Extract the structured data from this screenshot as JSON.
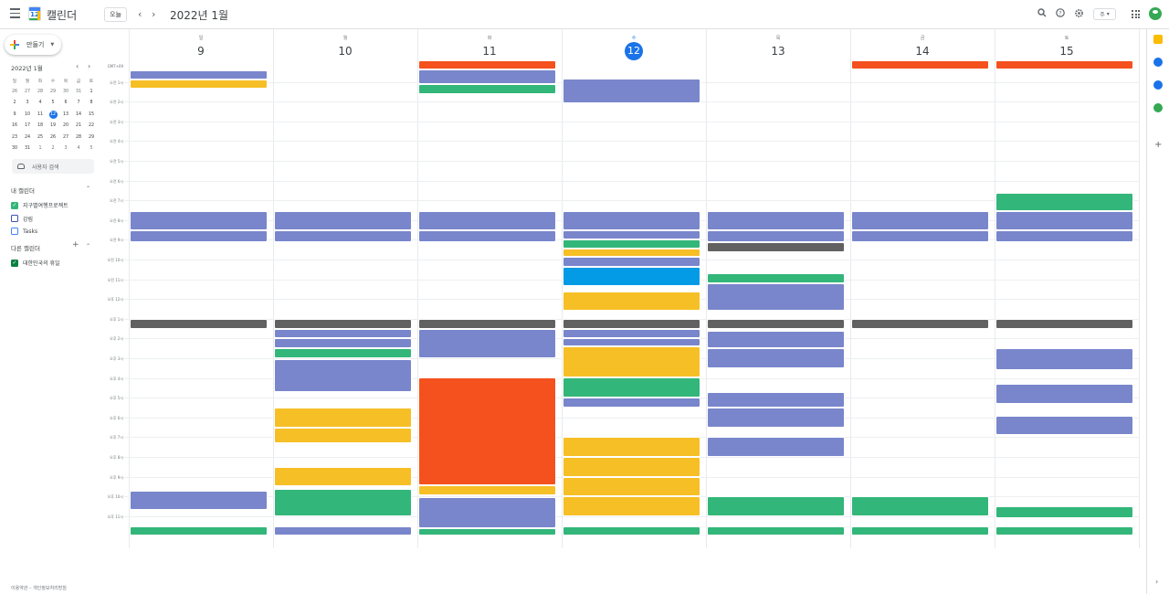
{
  "app": {
    "title": "캘린더",
    "logo_date": "12"
  },
  "toolbar": {
    "today_label": "오늘",
    "prev": "‹",
    "next": "›",
    "period_title": "2022년 1월",
    "view_label": "주",
    "search_icon": "search-icon",
    "help_icon": "help-icon",
    "settings_icon": "gear-icon"
  },
  "sidebar": {
    "create_label": "만들기",
    "mini_title": "2022년 1월",
    "mini_headers": [
      "일",
      "월",
      "화",
      "수",
      "목",
      "금",
      "토"
    ],
    "mini_days": [
      [
        "26",
        "27",
        "28",
        "29",
        "30",
        "31",
        "1"
      ],
      [
        "2",
        "3",
        "4",
        "5",
        "6",
        "7",
        "8"
      ],
      [
        "9",
        "10",
        "11",
        "12",
        "13",
        "14",
        "15"
      ],
      [
        "16",
        "17",
        "18",
        "19",
        "20",
        "21",
        "22"
      ],
      [
        "23",
        "24",
        "25",
        "26",
        "27",
        "28",
        "29"
      ],
      [
        "30",
        "31",
        "1",
        "2",
        "3",
        "4",
        "5"
      ]
    ],
    "people_search": "사용자 검색",
    "my_calendars_title": "내 캘린더",
    "my_calendars": [
      {
        "label": "지구별여행프로젝트",
        "color": "#33b679",
        "checked": true
      },
      {
        "label": "강림",
        "color": "#3f51b5",
        "checked": false
      },
      {
        "label": "Tasks",
        "color": "#4285f4",
        "checked": false
      }
    ],
    "other_calendars_title": "다른 캘린더",
    "other_calendars": [
      {
        "label": "대한민국의 휴일",
        "color": "#0b8043",
        "checked": true
      }
    ],
    "footer": "이용약관 – 개인정보처리방침"
  },
  "days": [
    {
      "dow": "일",
      "num": "9",
      "today": false
    },
    {
      "dow": "월",
      "num": "10",
      "today": false
    },
    {
      "dow": "화",
      "num": "11",
      "today": false
    },
    {
      "dow": "수",
      "num": "12",
      "today": true
    },
    {
      "dow": "목",
      "num": "13",
      "today": false
    },
    {
      "dow": "금",
      "num": "14",
      "today": false
    },
    {
      "dow": "토",
      "num": "15",
      "today": false
    }
  ],
  "time_labels": [
    "GMT+09",
    "오전 1시",
    "오전 2시",
    "오전 3시",
    "오전 4시",
    "오전 5시",
    "오전 6시",
    "오전 7시",
    "오전 8시",
    "오전 9시",
    "오전 10시",
    "오전 11시",
    "오후 12시",
    "오후 1시",
    "오후 2시",
    "오후 3시",
    "오후 4시",
    "오후 5시",
    "오후 6시",
    "오후 7시",
    "오후 8시",
    "오후 9시",
    "오후 10시",
    "오후 11시"
  ],
  "events": [
    {
      "day": 0,
      "start": 0.4,
      "end": 0.9,
      "color": "blue",
      "text": ""
    },
    {
      "day": 0,
      "start": 0.9,
      "end": 1.35,
      "color": "yellow",
      "text": ""
    },
    {
      "day": 2,
      "start": -0.2,
      "end": 0.35,
      "color": "red",
      "text": ""
    },
    {
      "day": 2,
      "start": 0.35,
      "end": 1.1,
      "color": "blue",
      "text": ""
    },
    {
      "day": 2,
      "start": 1.1,
      "end": 1.6,
      "color": "green",
      "text": ""
    },
    {
      "day": 3,
      "start": 0.85,
      "end": 2.1,
      "color": "blue",
      "text": ""
    },
    {
      "day": 5,
      "start": -0.2,
      "end": 0.35,
      "color": "red",
      "text": ""
    },
    {
      "day": 6,
      "start": -0.2,
      "end": 0.35,
      "color": "red",
      "text": ""
    },
    {
      "day": 6,
      "start": 6.6,
      "end": 7.55,
      "color": "green",
      "text": ""
    },
    {
      "day": 0,
      "start": 7.55,
      "end": 8.5,
      "color": "blue",
      "text": ""
    },
    {
      "day": 0,
      "start": 8.5,
      "end": 9.1,
      "color": "blue",
      "text": ""
    },
    {
      "day": 1,
      "start": 7.55,
      "end": 8.5,
      "color": "blue",
      "text": ""
    },
    {
      "day": 1,
      "start": 8.5,
      "end": 9.1,
      "color": "blue",
      "text": ""
    },
    {
      "day": 2,
      "start": 7.55,
      "end": 8.5,
      "color": "blue",
      "text": ""
    },
    {
      "day": 2,
      "start": 8.5,
      "end": 9.1,
      "color": "blue",
      "text": ""
    },
    {
      "day": 3,
      "start": 7.55,
      "end": 8.5,
      "color": "blue",
      "text": ""
    },
    {
      "day": 3,
      "start": 8.5,
      "end": 9.0,
      "color": "blue",
      "text": ""
    },
    {
      "day": 3,
      "start": 9.0,
      "end": 9.45,
      "color": "green",
      "text": ""
    },
    {
      "day": 3,
      "start": 9.45,
      "end": 9.85,
      "color": "yellow",
      "text": ""
    },
    {
      "day": 3,
      "start": 9.85,
      "end": 10.35,
      "color": "blue",
      "text": ""
    },
    {
      "day": 3,
      "start": 10.35,
      "end": 11.35,
      "color": "cyan",
      "text": ""
    },
    {
      "day": 3,
      "start": 11.6,
      "end": 12.6,
      "color": "yellow",
      "text": ""
    },
    {
      "day": 4,
      "start": 7.55,
      "end": 8.5,
      "color": "blue",
      "text": ""
    },
    {
      "day": 4,
      "start": 8.5,
      "end": 9.1,
      "color": "blue",
      "text": ""
    },
    {
      "day": 4,
      "start": 9.1,
      "end": 9.65,
      "color": "gray",
      "text": ""
    },
    {
      "day": 4,
      "start": 10.7,
      "end": 11.2,
      "color": "green",
      "text": ""
    },
    {
      "day": 4,
      "start": 11.2,
      "end": 12.6,
      "color": "blue",
      "text": ""
    },
    {
      "day": 5,
      "start": 7.55,
      "end": 8.5,
      "color": "blue",
      "text": ""
    },
    {
      "day": 5,
      "start": 8.5,
      "end": 9.1,
      "color": "blue",
      "text": ""
    },
    {
      "day": 6,
      "start": 7.55,
      "end": 8.5,
      "color": "blue",
      "text": ""
    },
    {
      "day": 6,
      "start": 8.5,
      "end": 9.1,
      "color": "blue",
      "text": ""
    },
    {
      "day": 0,
      "start": 13.0,
      "end": 13.5,
      "color": "gray",
      "text": ""
    },
    {
      "day": 1,
      "start": 13.0,
      "end": 13.5,
      "color": "gray",
      "text": ""
    },
    {
      "day": 2,
      "start": 13.0,
      "end": 13.5,
      "color": "gray",
      "text": ""
    },
    {
      "day": 3,
      "start": 13.0,
      "end": 13.5,
      "color": "gray",
      "text": ""
    },
    {
      "day": 4,
      "start": 13.0,
      "end": 13.5,
      "color": "gray",
      "text": ""
    },
    {
      "day": 5,
      "start": 13.0,
      "end": 13.5,
      "color": "gray",
      "text": ""
    },
    {
      "day": 6,
      "start": 13.0,
      "end": 13.5,
      "color": "gray",
      "text": ""
    },
    {
      "day": 1,
      "start": 13.5,
      "end": 14.0,
      "color": "blue",
      "text": ""
    },
    {
      "day": 1,
      "start": 14.0,
      "end": 14.5,
      "color": "blue",
      "text": ""
    },
    {
      "day": 1,
      "start": 14.5,
      "end": 15.0,
      "color": "green",
      "text": ""
    },
    {
      "day": 1,
      "start": 15.05,
      "end": 16.7,
      "color": "blue",
      "text": ""
    },
    {
      "day": 1,
      "start": 17.5,
      "end": 18.5,
      "color": "yellow",
      "text": ""
    },
    {
      "day": 1,
      "start": 18.5,
      "end": 19.3,
      "color": "yellow",
      "text": ""
    },
    {
      "day": 1,
      "start": 20.5,
      "end": 21.5,
      "color": "yellow",
      "text": ""
    },
    {
      "day": 1,
      "start": 21.6,
      "end": 23.0,
      "color": "green",
      "text": ""
    },
    {
      "day": 2,
      "start": 13.5,
      "end": 15.0,
      "color": "blue",
      "text": ""
    },
    {
      "day": 2,
      "start": 15.95,
      "end": 21.45,
      "color": "red",
      "text": ""
    },
    {
      "day": 2,
      "start": 21.45,
      "end": 21.95,
      "color": "yellow",
      "text": ""
    },
    {
      "day": 2,
      "start": 22.05,
      "end": 23.6,
      "color": "blue",
      "text": ""
    },
    {
      "day": 3,
      "start": 13.5,
      "end": 14.0,
      "color": "blue",
      "text": ""
    },
    {
      "day": 3,
      "start": 14.0,
      "end": 14.4,
      "color": "blue",
      "text": ""
    },
    {
      "day": 3,
      "start": 14.4,
      "end": 15.95,
      "color": "yellow",
      "text": ""
    },
    {
      "day": 3,
      "start": 15.95,
      "end": 17.0,
      "color": "green",
      "text": ""
    },
    {
      "day": 3,
      "start": 17.0,
      "end": 17.5,
      "color": "blue",
      "text": ""
    },
    {
      "day": 3,
      "start": 19.0,
      "end": 20.0,
      "color": "yellow",
      "text": ""
    },
    {
      "day": 3,
      "start": 20.0,
      "end": 21.0,
      "color": "yellow",
      "text": ""
    },
    {
      "day": 3,
      "start": 21.0,
      "end": 22.0,
      "color": "yellow",
      "text": ""
    },
    {
      "day": 3,
      "start": 22.0,
      "end": 23.0,
      "color": "yellow",
      "text": ""
    },
    {
      "day": 4,
      "start": 13.6,
      "end": 14.5,
      "color": "blue",
      "text": ""
    },
    {
      "day": 4,
      "start": 14.5,
      "end": 15.5,
      "color": "blue",
      "text": ""
    },
    {
      "day": 4,
      "start": 16.7,
      "end": 17.5,
      "color": "blue",
      "text": ""
    },
    {
      "day": 4,
      "start": 17.5,
      "end": 18.5,
      "color": "blue",
      "text": ""
    },
    {
      "day": 4,
      "start": 19.0,
      "end": 20.0,
      "color": "blue",
      "text": ""
    },
    {
      "day": 4,
      "start": 22.0,
      "end": 23.0,
      "color": "green",
      "text": ""
    },
    {
      "day": 5,
      "start": 22.0,
      "end": 23.0,
      "color": "green",
      "text": ""
    },
    {
      "day": 6,
      "start": 14.5,
      "end": 15.6,
      "color": "blue",
      "text": ""
    },
    {
      "day": 6,
      "start": 16.3,
      "end": 17.3,
      "color": "blue",
      "text": ""
    },
    {
      "day": 6,
      "start": 17.9,
      "end": 18.9,
      "color": "blue",
      "text": ""
    },
    {
      "day": 6,
      "start": 22.5,
      "end": 23.1,
      "color": "green",
      "text": ""
    },
    {
      "day": 0,
      "start": 21.7,
      "end": 22.7,
      "color": "blue",
      "text": ""
    },
    {
      "day": 0,
      "start": 23.5,
      "end": 24.0,
      "color": "green",
      "text": ""
    },
    {
      "day": 1,
      "start": 23.5,
      "end": 24.0,
      "color": "blue",
      "text": ""
    },
    {
      "day": 2,
      "start": 23.6,
      "end": 24.0,
      "color": "green",
      "text": ""
    },
    {
      "day": 3,
      "start": 23.5,
      "end": 24.0,
      "color": "green",
      "text": ""
    },
    {
      "day": 4,
      "start": 23.5,
      "end": 24.0,
      "color": "green",
      "text": ""
    },
    {
      "day": 5,
      "start": 23.5,
      "end": 24.0,
      "color": "green",
      "text": ""
    },
    {
      "day": 6,
      "start": 23.5,
      "end": 24.0,
      "color": "green",
      "text": ""
    }
  ],
  "right_rail": [
    {
      "name": "keep-icon",
      "color": "#fbbc04"
    },
    {
      "name": "tasks-icon",
      "color": "#1a73e8"
    },
    {
      "name": "contacts-icon",
      "color": "#1a73e8"
    },
    {
      "name": "maps-icon",
      "color": "#34a853"
    }
  ]
}
